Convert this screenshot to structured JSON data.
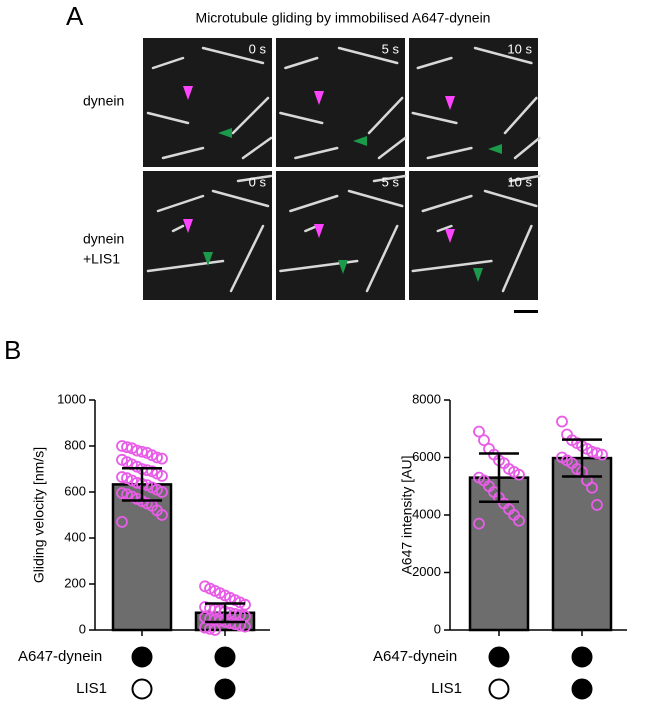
{
  "panel_a": {
    "label": "A",
    "title": "Microtubule gliding by immobilised A647-dynein",
    "rows": [
      "dynein",
      [
        "dynein",
        "+LIS1"
      ]
    ],
    "times": [
      "0 s",
      "5 s",
      "10 s"
    ]
  },
  "panel_b_label": "B",
  "chart_data": [
    {
      "type": "bar",
      "y_label": "Gliding velocity [nm/s]",
      "ylim": [
        0,
        1000
      ],
      "yticks": [
        0,
        200,
        400,
        600,
        800,
        1000
      ],
      "values": [
        633,
        75
      ],
      "errors": [
        70,
        40
      ],
      "points": [
        [
          800,
          795,
          790,
          780,
          775,
          770,
          760,
          750,
          745,
          740,
          730,
          720,
          710,
          700,
          695,
          690,
          680,
          670,
          665,
          660,
          650,
          640,
          635,
          630,
          620,
          610,
          600,
          595,
          590,
          580,
          570,
          560,
          550,
          540,
          520,
          500,
          470
        ],
        [
          190,
          180,
          170,
          160,
          150,
          140,
          130,
          120,
          110,
          100,
          95,
          90,
          85,
          80,
          75,
          70,
          65,
          60,
          55,
          50,
          45,
          40,
          35,
          30,
          25,
          20,
          15,
          10,
          5,
          0
        ]
      ],
      "color": "#6d6d6d",
      "point_color": "#e85ce8",
      "conditions": [
        {
          "label": "A647-dynein",
          "present": [
            true,
            true
          ]
        },
        {
          "label": "LIS1",
          "present": [
            false,
            true
          ]
        }
      ]
    },
    {
      "type": "bar",
      "y_label": "A647 intensity [AU]",
      "ylim": [
        0,
        8000
      ],
      "yticks": [
        0,
        2000,
        4000,
        6000,
        8000
      ],
      "values": [
        5300,
        5980
      ],
      "errors": [
        840,
        640
      ],
      "points": [
        [
          6900,
          6600,
          6300,
          6100,
          5900,
          5800,
          5600,
          5500,
          5400,
          5300,
          5200,
          5000,
          4800,
          4600,
          4400,
          4200,
          4000,
          3800,
          3700
        ],
        [
          7250,
          6800,
          6600,
          6500,
          6400,
          6300,
          6200,
          6150,
          6100,
          6000,
          5900,
          5800,
          5600,
          5500,
          5200,
          4950,
          4350
        ]
      ],
      "color": "#6d6d6d",
      "point_color": "#e85ce8",
      "conditions": [
        {
          "label": "A647-dynein",
          "present": [
            true,
            true
          ]
        },
        {
          "label": "LIS1",
          "present": [
            false,
            true
          ]
        }
      ]
    }
  ]
}
